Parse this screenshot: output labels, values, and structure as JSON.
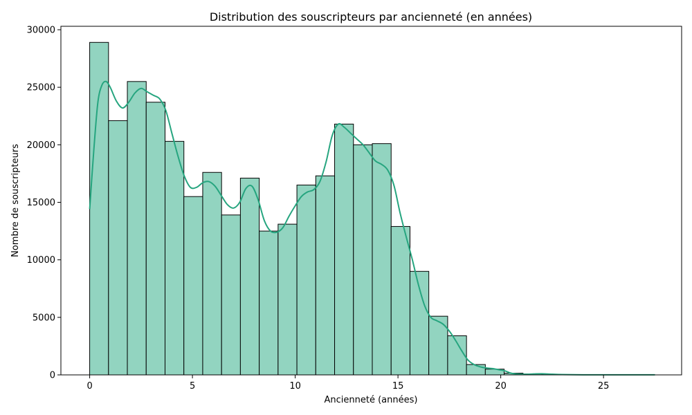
{
  "chart_data": {
    "type": "bar",
    "title": "Distribution des souscripteurs par ancienneté (en années)",
    "xlabel": "Ancienneté (années)",
    "ylabel": "Nombre de souscripteurs",
    "xlim": [
      -1.4,
      28.8
    ],
    "ylim": [
      0,
      30300
    ],
    "xticks": [
      0,
      5,
      10,
      15,
      20,
      25
    ],
    "yticks": [
      0,
      5000,
      10000,
      15000,
      20000,
      25000,
      30000
    ],
    "bin_width": 0.917,
    "bin_starts": [
      0.0,
      0.917,
      1.833,
      2.75,
      3.667,
      4.583,
      5.5,
      6.417,
      7.333,
      8.25,
      9.167,
      10.083,
      11.0,
      11.917,
      12.833,
      13.75,
      14.667,
      15.583,
      16.5,
      17.417,
      18.333,
      19.25,
      20.167,
      21.083,
      22.0,
      22.917,
      23.833,
      24.75,
      25.667,
      26.583
    ],
    "values": [
      28900,
      22100,
      25500,
      23700,
      20300,
      15500,
      17600,
      13900,
      17100,
      12500,
      13100,
      16500,
      17300,
      21800,
      20000,
      20100,
      12900,
      9000,
      5100,
      3400,
      900,
      500,
      150,
      80,
      40,
      20,
      10,
      10,
      5,
      5
    ],
    "kde": {
      "x": [
        0.0,
        0.2,
        0.4,
        0.6,
        0.8,
        1.0,
        1.3,
        1.6,
        1.9,
        2.2,
        2.5,
        2.8,
        3.1,
        3.4,
        3.7,
        4.0,
        4.3,
        4.6,
        4.9,
        5.2,
        5.5,
        5.8,
        6.1,
        6.4,
        6.7,
        7.0,
        7.3,
        7.6,
        7.9,
        8.2,
        8.5,
        8.8,
        9.1,
        9.4,
        9.7,
        10.0,
        10.3,
        10.6,
        10.9,
        11.2,
        11.5,
        11.8,
        12.1,
        12.4,
        12.7,
        13.0,
        13.3,
        13.6,
        13.9,
        14.2,
        14.5,
        14.8,
        15.1,
        15.4,
        15.7,
        16.0,
        16.3,
        16.6,
        16.9,
        17.2,
        17.5,
        17.8,
        18.1,
        18.4,
        18.7,
        19.0,
        19.3,
        19.6,
        19.9,
        20.2,
        20.5,
        20.8,
        21.2,
        21.6,
        22.0,
        22.5,
        23.0,
        24.0,
        25.0,
        26.0,
        27.5
      ],
      "y": [
        14400,
        19500,
        23700,
        25200,
        25500,
        25000,
        23800,
        23200,
        23700,
        24500,
        24900,
        24600,
        24300,
        24000,
        23000,
        21000,
        19000,
        17300,
        16300,
        16300,
        16700,
        16800,
        16400,
        15600,
        14800,
        14500,
        15000,
        16200,
        16400,
        15200,
        13400,
        12500,
        12400,
        12800,
        13800,
        14700,
        15500,
        15900,
        16100,
        16800,
        18500,
        20800,
        21800,
        21500,
        21000,
        20500,
        20000,
        19300,
        18600,
        18300,
        17800,
        16500,
        14100,
        12000,
        10000,
        7800,
        6000,
        5000,
        4700,
        4400,
        3800,
        3000,
        2100,
        1300,
        900,
        700,
        600,
        550,
        450,
        350,
        150,
        80,
        50,
        80,
        100,
        60,
        30,
        10,
        5,
        5,
        5
      ]
    },
    "bar_color": "#92d4c0",
    "bar_edge_color": "#000000",
    "kde_color": "#26a57f",
    "grid": false
  }
}
